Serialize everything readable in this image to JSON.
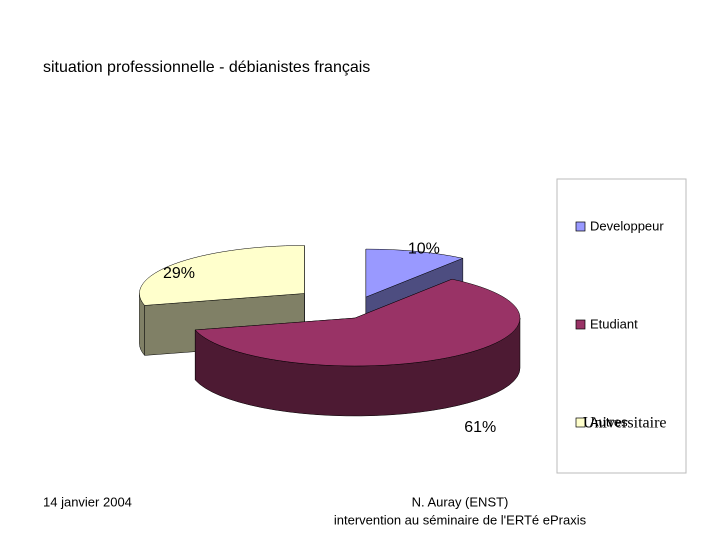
{
  "chart_data": {
    "type": "pie",
    "title": "situation professionnelle - débianistes français",
    "categories": [
      "Developpeur",
      "Etudiant",
      "Autres"
    ],
    "values": [
      10,
      61,
      29
    ],
    "value_labels": [
      "10%",
      "61%",
      "29%"
    ],
    "colors": [
      "#9999ff",
      "#993366",
      "#ffffcc"
    ],
    "legend": "right",
    "annotation": "Universitaire"
  },
  "footer": {
    "date": "14 janvier 2004",
    "author": "N. Auray (ENST)",
    "event": "intervention au séminaire de l'ERTé ePraxis"
  }
}
